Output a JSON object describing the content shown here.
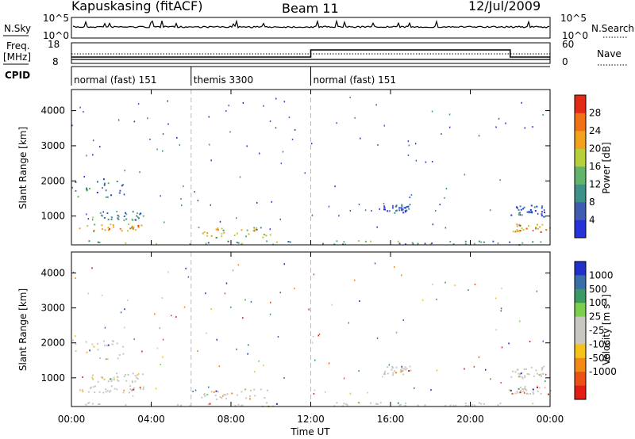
{
  "header": {
    "station": "Kapuskasing (fitACF)",
    "beam": "Beam 11",
    "date": "12/Jul/2009"
  },
  "status_labels": {
    "nsky": "N.Sky",
    "nsky_hi": "10^5",
    "nsky_lo": "10^0",
    "nsearch": "N.Search",
    "nsearch_hi": "10^5",
    "nsearch_lo": "10^0",
    "freq_line1": "Freq.",
    "freq_line2": "[MHz]",
    "freq_hi": "18",
    "freq_lo": "8",
    "nave": "Nave",
    "nave_hi": "60",
    "nave_lo": "0",
    "cpid": "CPID"
  },
  "cpid_segments": [
    {
      "label": "normal (fast) 151",
      "start_hour": 0
    },
    {
      "label": "themis 3300",
      "start_hour": 6
    },
    {
      "label": "normal (fast) 151",
      "start_hour": 12
    }
  ],
  "colors": {
    "power_scale": [
      "#2633d9",
      "#3f5bb2",
      "#3f8f8a",
      "#64b36a",
      "#b7cf3a",
      "#f0a21c",
      "#f07014",
      "#e32a14"
    ],
    "velocity_scale": [
      "#2030c8",
      "#3b6ea8",
      "#3a9a64",
      "#7ccf4e",
      "#c8c8c0",
      "#c8c8c0",
      "#f5c21a",
      "#f08a14",
      "#ec5014",
      "#e21d14"
    ]
  },
  "chart_data": [
    {
      "type": "heatmap",
      "title": "",
      "xlabel": "",
      "ylabel": "Slant Range [km]",
      "x_unit_ticks": [
        "00:00",
        "04:00",
        "08:00",
        "12:00",
        "16:00",
        "20:00",
        "00:00"
      ],
      "xlim_hours": [
        0,
        24
      ],
      "ylim_km": [
        180,
        4600
      ],
      "y_ticks": [
        1000,
        2000,
        3000,
        4000
      ],
      "colorbar": {
        "label": "Power [dB]",
        "ticks": [
          4,
          8,
          12,
          16,
          20,
          24,
          28
        ],
        "range": [
          0,
          32
        ]
      },
      "echo_regions": [
        {
          "t0": 0.0,
          "t1": 3.5,
          "r0": 600,
          "r1": 800,
          "value": 22
        },
        {
          "t0": 1.0,
          "t1": 3.6,
          "r0": 900,
          "r1": 1150,
          "value": 10
        },
        {
          "t0": 0.0,
          "t1": 2.6,
          "r0": 1550,
          "r1": 2100,
          "value": 8
        },
        {
          "t0": 6.3,
          "t1": 10.0,
          "r0": 400,
          "r1": 700,
          "value": 18
        },
        {
          "t0": 0.0,
          "t1": 24.0,
          "r0": 200,
          "r1": 320,
          "value": 12
        },
        {
          "t0": 15.6,
          "t1": 17.0,
          "r0": 1100,
          "r1": 1350,
          "value": 5
        },
        {
          "t0": 22.0,
          "t1": 24.0,
          "r0": 550,
          "r1": 800,
          "value": 24
        },
        {
          "t0": 22.0,
          "t1": 23.8,
          "r0": 1000,
          "r1": 1350,
          "value": 6
        }
      ]
    },
    {
      "type": "heatmap",
      "title": "",
      "xlabel": "Time UT",
      "ylabel": "Slant Range [km]",
      "x_ticks": [
        "00:00",
        "04:00",
        "08:00",
        "12:00",
        "16:00",
        "20:00",
        "00:00"
      ],
      "xlim_hours": [
        0,
        24
      ],
      "ylim_km": [
        180,
        4600
      ],
      "y_ticks": [
        1000,
        2000,
        3000,
        4000
      ],
      "colorbar": {
        "label": "Velocity [m s^-1]",
        "ticks": [
          1000,
          500,
          100,
          25,
          -25,
          -100,
          -500,
          -1000
        ]
      },
      "echo_regions": [
        {
          "t0": 0.0,
          "t1": 3.6,
          "r0": 600,
          "r1": 800,
          "value": 0
        },
        {
          "t0": 1.0,
          "t1": 3.6,
          "r0": 900,
          "r1": 1150,
          "value": 0
        },
        {
          "t0": 0.0,
          "t1": 2.6,
          "r0": 1550,
          "r1": 2100,
          "value": 0
        },
        {
          "t0": 6.3,
          "t1": 10.0,
          "r0": 400,
          "r1": 700,
          "value": 0
        },
        {
          "t0": 0.0,
          "t1": 24.0,
          "r0": 200,
          "r1": 320,
          "value": 0
        },
        {
          "t0": 15.6,
          "t1": 17.0,
          "r0": 1100,
          "r1": 1350,
          "value": 0
        },
        {
          "t0": 22.0,
          "t1": 24.0,
          "r0": 550,
          "r1": 800,
          "value": 0
        },
        {
          "t0": 22.0,
          "t1": 23.8,
          "r0": 1000,
          "r1": 1350,
          "value": 0
        }
      ]
    }
  ]
}
